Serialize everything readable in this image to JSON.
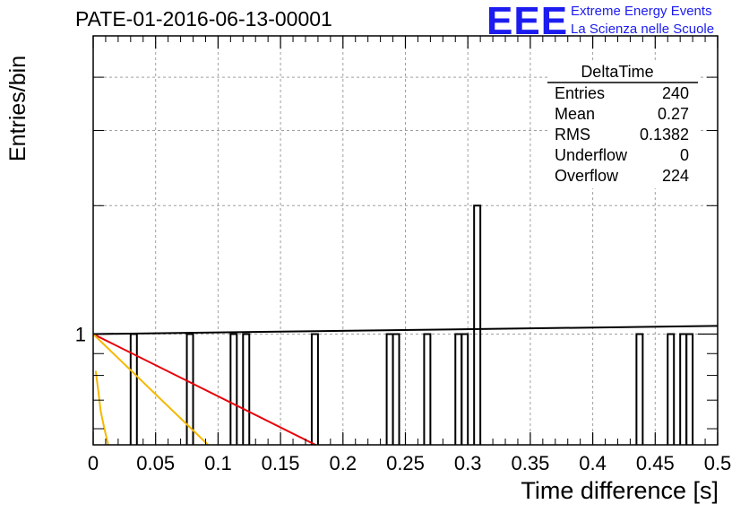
{
  "title": "PATE-01-2016-06-13-00001",
  "logo": {
    "mark": "EEE",
    "line1": "Extreme Energy Events",
    "line2": "La Scienza nelle Scuole",
    "color": "#1c1cf0"
  },
  "stats": {
    "name": "DeltaTime",
    "rows": [
      {
        "label": "Entries",
        "value": "240"
      },
      {
        "label": "Mean",
        "value": "0.27"
      },
      {
        "label": "RMS",
        "value": "0.1382"
      },
      {
        "label": "Underflow",
        "value": "0"
      },
      {
        "label": "Overflow",
        "value": "224"
      }
    ]
  },
  "chart_data": {
    "type": "bar",
    "title": "PATE-01-2016-06-13-00001",
    "xlabel": "Time difference [s]",
    "ylabel": "Entries/bin",
    "xlim": [
      0,
      0.5
    ],
    "ylim": [
      0.55,
      5
    ],
    "ylog": true,
    "grid": true,
    "legend": "top-right",
    "x_ticks": [
      "0",
      "0.05",
      "0.1",
      "0.15",
      "0.2",
      "0.25",
      "0.3",
      "0.35",
      "0.4",
      "0.45",
      "0.5"
    ],
    "y_ticks": [
      "1"
    ],
    "bin_width": 0.005,
    "bins": [
      {
        "x": 0.03,
        "y": 1
      },
      {
        "x": 0.075,
        "y": 1
      },
      {
        "x": 0.11,
        "y": 1
      },
      {
        "x": 0.12,
        "y": 1
      },
      {
        "x": 0.175,
        "y": 1
      },
      {
        "x": 0.235,
        "y": 1
      },
      {
        "x": 0.24,
        "y": 1
      },
      {
        "x": 0.265,
        "y": 1
      },
      {
        "x": 0.29,
        "y": 1
      },
      {
        "x": 0.295,
        "y": 1
      },
      {
        "x": 0.305,
        "y": 2
      },
      {
        "x": 0.435,
        "y": 1
      },
      {
        "x": 0.46,
        "y": 1
      },
      {
        "x": 0.47,
        "y": 1
      },
      {
        "x": 0.475,
        "y": 1
      }
    ],
    "lines": [
      {
        "color": "#000000",
        "points": [
          [
            0,
            1.0
          ],
          [
            0.5,
            1.045
          ]
        ]
      },
      {
        "color": "#e8000b",
        "points": [
          [
            0,
            1.0
          ],
          [
            0.178,
            0.55
          ]
        ]
      },
      {
        "color": "#f5b800",
        "points": [
          [
            0,
            1.0
          ],
          [
            0.092,
            0.55
          ]
        ]
      },
      {
        "color": "#f5b800",
        "points": [
          [
            0.002,
            0.82
          ],
          [
            0.004,
            0.74
          ],
          [
            0.006,
            0.66
          ],
          [
            0.009,
            0.6
          ],
          [
            0.012,
            0.55
          ]
        ]
      }
    ]
  }
}
